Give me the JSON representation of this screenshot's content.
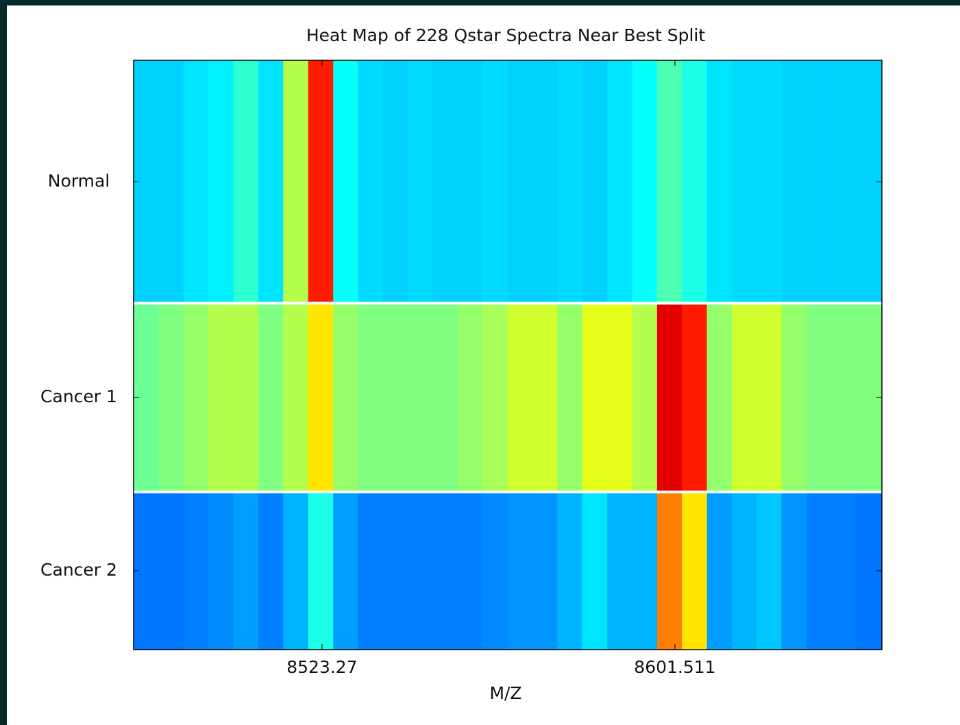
{
  "chart_data": {
    "type": "heatmap",
    "title": "Heat Map of 228 Qstar Spectra Near Best Split",
    "x_label": "M/Z",
    "categories": [
      "Normal",
      "Cancer 1",
      "Cancer 2"
    ],
    "rows": [
      94,
      73,
      61
    ],
    "x": [
      8484.3,
      8489.8,
      8495.3,
      8500.8,
      8506.4,
      8511.9,
      8517.4,
      8523.0,
      8528.5,
      8534.0,
      8539.5,
      8545.1,
      8550.6,
      8556.1,
      8561.6,
      8567.2,
      8572.7,
      8578.2,
      8583.7,
      8589.3,
      8594.8,
      8600.3,
      8605.8,
      8611.4,
      8616.9,
      8622.4,
      8627.9,
      8633.5,
      8639.0,
      8644.5
    ],
    "values": [
      [
        0.33,
        0.33,
        0.35,
        0.36,
        0.42,
        0.35,
        0.55,
        0.85,
        0.38,
        0.34,
        0.33,
        0.34,
        0.33,
        0.33,
        0.34,
        0.33,
        0.33,
        0.34,
        0.33,
        0.35,
        0.38,
        0.45,
        0.4,
        0.35,
        0.34,
        0.34,
        0.33,
        0.33,
        0.33,
        0.33
      ],
      [
        0.48,
        0.5,
        0.52,
        0.55,
        0.55,
        0.5,
        0.55,
        0.65,
        0.52,
        0.5,
        0.5,
        0.5,
        0.5,
        0.52,
        0.54,
        0.58,
        0.58,
        0.52,
        0.6,
        0.6,
        0.55,
        0.9,
        0.85,
        0.52,
        0.58,
        0.58,
        0.52,
        0.5,
        0.5,
        0.5
      ],
      [
        0.24,
        0.24,
        0.25,
        0.26,
        0.28,
        0.25,
        0.3,
        0.4,
        0.28,
        0.25,
        0.25,
        0.25,
        0.25,
        0.25,
        0.26,
        0.27,
        0.27,
        0.3,
        0.35,
        0.3,
        0.3,
        0.75,
        0.65,
        0.28,
        0.3,
        0.32,
        0.27,
        0.25,
        0.25,
        0.24
      ]
    ],
    "colormap": "jet",
    "clim": [
      0,
      1
    ],
    "xlim": [
      8481.5,
      8647.4
    ],
    "xticks": [
      8523.27,
      8601.511
    ]
  }
}
